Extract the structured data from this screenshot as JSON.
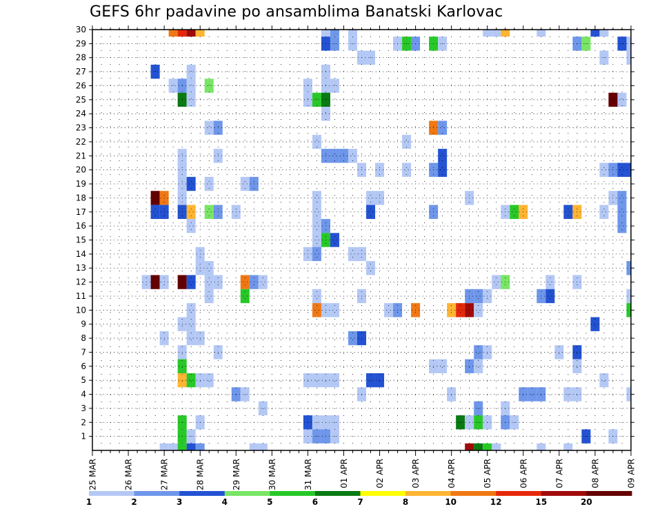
{
  "chart_data": {
    "type": "heatmap",
    "title": "GEFS 6hr padavine po ansamblima Banatski Karlovac",
    "xlabel": "",
    "ylabel": "",
    "x_unit": "6-hour steps starting 25 MAR",
    "x_range": [
      0,
      60
    ],
    "y_range": [
      0,
      30
    ],
    "y_ticks": [
      1,
      2,
      3,
      4,
      5,
      6,
      7,
      8,
      9,
      10,
      11,
      12,
      13,
      14,
      15,
      16,
      17,
      18,
      19,
      20,
      21,
      22,
      23,
      24,
      25,
      26,
      27,
      28,
      29,
      30
    ],
    "date_labels": [
      "25 MAR",
      "26 MAR",
      "27 MAR",
      "28 MAR",
      "29 MAR",
      "30 MAR",
      "31 MAR",
      "01 APR",
      "02 APR",
      "03 APR",
      "04 APR",
      "05 APR",
      "06 APR",
      "07 APR",
      "08 APR",
      "09 APR"
    ],
    "grid": true,
    "legend_placement": "bottom",
    "legend": {
      "labels": [
        "1",
        "2",
        "3",
        "4",
        "5",
        "6",
        "7",
        "8",
        "10",
        "12",
        "15",
        "20"
      ],
      "colors": [
        "#b4c8f5",
        "#6e96ea",
        "#2352d2",
        "#78e664",
        "#28c828",
        "#0a7a12",
        "#ffff00",
        "#ffb432",
        "#f07814",
        "#e6280a",
        "#a00a0a",
        "#640000"
      ]
    },
    "cells": [
      [
        9,
        30,
        10
      ],
      [
        10,
        30,
        12
      ],
      [
        11,
        30,
        15
      ],
      [
        12,
        30,
        8
      ],
      [
        26,
        30,
        1
      ],
      [
        27,
        30,
        2
      ],
      [
        29,
        30,
        1
      ],
      [
        44,
        30,
        1
      ],
      [
        45,
        30,
        1
      ],
      [
        46,
        30,
        8
      ],
      [
        50,
        30,
        1
      ],
      [
        56,
        30,
        3
      ],
      [
        57,
        30,
        1
      ],
      [
        26,
        29,
        3
      ],
      [
        27,
        29,
        2
      ],
      [
        29,
        29,
        1
      ],
      [
        34,
        29,
        1
      ],
      [
        35,
        29,
        5
      ],
      [
        36,
        29,
        2
      ],
      [
        38,
        29,
        5
      ],
      [
        39,
        29,
        1
      ],
      [
        54,
        29,
        2
      ],
      [
        55,
        29,
        4
      ],
      [
        59,
        29,
        3
      ],
      [
        60,
        29,
        1
      ],
      [
        30,
        28,
        1
      ],
      [
        31,
        28,
        1
      ],
      [
        57,
        28,
        1
      ],
      [
        60,
        28,
        1
      ],
      [
        7,
        27,
        3
      ],
      [
        11,
        27,
        1
      ],
      [
        26,
        27,
        1
      ],
      [
        9,
        26,
        1
      ],
      [
        10,
        26,
        2
      ],
      [
        11,
        26,
        1
      ],
      [
        13,
        26,
        4
      ],
      [
        24,
        26,
        1
      ],
      [
        26,
        26,
        1
      ],
      [
        27,
        26,
        1
      ],
      [
        10,
        25,
        6
      ],
      [
        11,
        25,
        1
      ],
      [
        24,
        25,
        1
      ],
      [
        25,
        25,
        5
      ],
      [
        26,
        25,
        6
      ],
      [
        58,
        25,
        20
      ],
      [
        59,
        25,
        1
      ],
      [
        26,
        24,
        1
      ],
      [
        13,
        23,
        1
      ],
      [
        14,
        23,
        2
      ],
      [
        38,
        23,
        10
      ],
      [
        39,
        23,
        2
      ],
      [
        25,
        22,
        1
      ],
      [
        35,
        22,
        1
      ],
      [
        10,
        21,
        1
      ],
      [
        14,
        21,
        1
      ],
      [
        26,
        21,
        2
      ],
      [
        27,
        21,
        2
      ],
      [
        28,
        21,
        2
      ],
      [
        29,
        21,
        1
      ],
      [
        39,
        21,
        3
      ],
      [
        10,
        20,
        1
      ],
      [
        30,
        20,
        1
      ],
      [
        32,
        20,
        1
      ],
      [
        35,
        20,
        1
      ],
      [
        38,
        20,
        2
      ],
      [
        39,
        20,
        3
      ],
      [
        57,
        20,
        1
      ],
      [
        58,
        20,
        2
      ],
      [
        59,
        20,
        3
      ],
      [
        60,
        20,
        3
      ],
      [
        10,
        19,
        1
      ],
      [
        11,
        19,
        3
      ],
      [
        13,
        19,
        1
      ],
      [
        17,
        19,
        1
      ],
      [
        18,
        19,
        2
      ],
      [
        7,
        18,
        20
      ],
      [
        8,
        18,
        10
      ],
      [
        10,
        18,
        1
      ],
      [
        25,
        18,
        1
      ],
      [
        31,
        18,
        1
      ],
      [
        32,
        18,
        1
      ],
      [
        42,
        18,
        1
      ],
      [
        58,
        18,
        1
      ],
      [
        59,
        18,
        2
      ],
      [
        7,
        17,
        3
      ],
      [
        8,
        17,
        3
      ],
      [
        10,
        17,
        3
      ],
      [
        11,
        17,
        8
      ],
      [
        13,
        17,
        4
      ],
      [
        14,
        17,
        2
      ],
      [
        16,
        17,
        1
      ],
      [
        25,
        17,
        1
      ],
      [
        31,
        17,
        3
      ],
      [
        38,
        17,
        2
      ],
      [
        46,
        17,
        1
      ],
      [
        47,
        17,
        5
      ],
      [
        48,
        17,
        8
      ],
      [
        53,
        17,
        3
      ],
      [
        54,
        17,
        8
      ],
      [
        57,
        17,
        1
      ],
      [
        59,
        17,
        2
      ],
      [
        11,
        16,
        1
      ],
      [
        25,
        16,
        1
      ],
      [
        26,
        16,
        2
      ],
      [
        59,
        16,
        2
      ],
      [
        25,
        15,
        1
      ],
      [
        26,
        15,
        5
      ],
      [
        27,
        15,
        3
      ],
      [
        12,
        14,
        1
      ],
      [
        24,
        14,
        1
      ],
      [
        25,
        14,
        2
      ],
      [
        29,
        14,
        1
      ],
      [
        30,
        14,
        1
      ],
      [
        12,
        13,
        1
      ],
      [
        13,
        13,
        1
      ],
      [
        31,
        13,
        1
      ],
      [
        60,
        13,
        2
      ],
      [
        6,
        12,
        1
      ],
      [
        7,
        12,
        20
      ],
      [
        8,
        12,
        1
      ],
      [
        10,
        12,
        20
      ],
      [
        11,
        12,
        3
      ],
      [
        13,
        12,
        1
      ],
      [
        14,
        12,
        1
      ],
      [
        17,
        12,
        10
      ],
      [
        18,
        12,
        2
      ],
      [
        19,
        12,
        1
      ],
      [
        45,
        12,
        1
      ],
      [
        46,
        12,
        4
      ],
      [
        51,
        12,
        1
      ],
      [
        54,
        12,
        1
      ],
      [
        13,
        11,
        1
      ],
      [
        17,
        11,
        5
      ],
      [
        25,
        11,
        1
      ],
      [
        30,
        11,
        1
      ],
      [
        42,
        11,
        2
      ],
      [
        43,
        11,
        2
      ],
      [
        44,
        11,
        1
      ],
      [
        50,
        11,
        2
      ],
      [
        51,
        11,
        3
      ],
      [
        60,
        11,
        1
      ],
      [
        11,
        10,
        1
      ],
      [
        25,
        10,
        10
      ],
      [
        26,
        10,
        1
      ],
      [
        27,
        10,
        1
      ],
      [
        33,
        10,
        1
      ],
      [
        34,
        10,
        2
      ],
      [
        36,
        10,
        10
      ],
      [
        40,
        10,
        8
      ],
      [
        41,
        10,
        12
      ],
      [
        42,
        10,
        15
      ],
      [
        43,
        10,
        1
      ],
      [
        60,
        10,
        5
      ],
      [
        10,
        9,
        1
      ],
      [
        11,
        9,
        1
      ],
      [
        56,
        9,
        3
      ],
      [
        8,
        8,
        1
      ],
      [
        11,
        8,
        1
      ],
      [
        12,
        8,
        1
      ],
      [
        29,
        8,
        2
      ],
      [
        30,
        8,
        3
      ],
      [
        10,
        7,
        1
      ],
      [
        14,
        7,
        1
      ],
      [
        43,
        7,
        2
      ],
      [
        44,
        7,
        1
      ],
      [
        52,
        7,
        1
      ],
      [
        54,
        7,
        3
      ],
      [
        10,
        6,
        5
      ],
      [
        38,
        6,
        1
      ],
      [
        39,
        6,
        1
      ],
      [
        42,
        6,
        2
      ],
      [
        43,
        6,
        1
      ],
      [
        54,
        6,
        1
      ],
      [
        10,
        5,
        8
      ],
      [
        11,
        5,
        5
      ],
      [
        12,
        5,
        1
      ],
      [
        13,
        5,
        1
      ],
      [
        24,
        5,
        1
      ],
      [
        25,
        5,
        1
      ],
      [
        26,
        5,
        1
      ],
      [
        27,
        5,
        1
      ],
      [
        31,
        5,
        3
      ],
      [
        32,
        5,
        3
      ],
      [
        57,
        5,
        1
      ],
      [
        16,
        4,
        2
      ],
      [
        17,
        4,
        1
      ],
      [
        30,
        4,
        1
      ],
      [
        40,
        4,
        1
      ],
      [
        48,
        4,
        2
      ],
      [
        49,
        4,
        2
      ],
      [
        50,
        4,
        2
      ],
      [
        53,
        4,
        1
      ],
      [
        54,
        4,
        1
      ],
      [
        60,
        4,
        1
      ],
      [
        19,
        3,
        1
      ],
      [
        43,
        3,
        2
      ],
      [
        46,
        3,
        1
      ],
      [
        10,
        2,
        5
      ],
      [
        12,
        2,
        1
      ],
      [
        24,
        2,
        3
      ],
      [
        25,
        2,
        1
      ],
      [
        26,
        2,
        1
      ],
      [
        27,
        2,
        1
      ],
      [
        41,
        2,
        6
      ],
      [
        42,
        2,
        1
      ],
      [
        43,
        2,
        5
      ],
      [
        44,
        2,
        1
      ],
      [
        46,
        2,
        2
      ],
      [
        47,
        2,
        1
      ],
      [
        10,
        1,
        5
      ],
      [
        11,
        1,
        1
      ],
      [
        24,
        1,
        1
      ],
      [
        25,
        1,
        2
      ],
      [
        26,
        1,
        2
      ],
      [
        27,
        1,
        1
      ],
      [
        55,
        1,
        3
      ],
      [
        58,
        1,
        1
      ],
      [
        8,
        0,
        1
      ],
      [
        9,
        0,
        1
      ],
      [
        10,
        0,
        5
      ],
      [
        11,
        0,
        3
      ],
      [
        12,
        0,
        2
      ],
      [
        18,
        0,
        1
      ],
      [
        19,
        0,
        1
      ],
      [
        42,
        0,
        15
      ],
      [
        43,
        0,
        6
      ],
      [
        44,
        0,
        5
      ],
      [
        45,
        0,
        1
      ],
      [
        50,
        0,
        1
      ],
      [
        53,
        0,
        1
      ]
    ]
  }
}
